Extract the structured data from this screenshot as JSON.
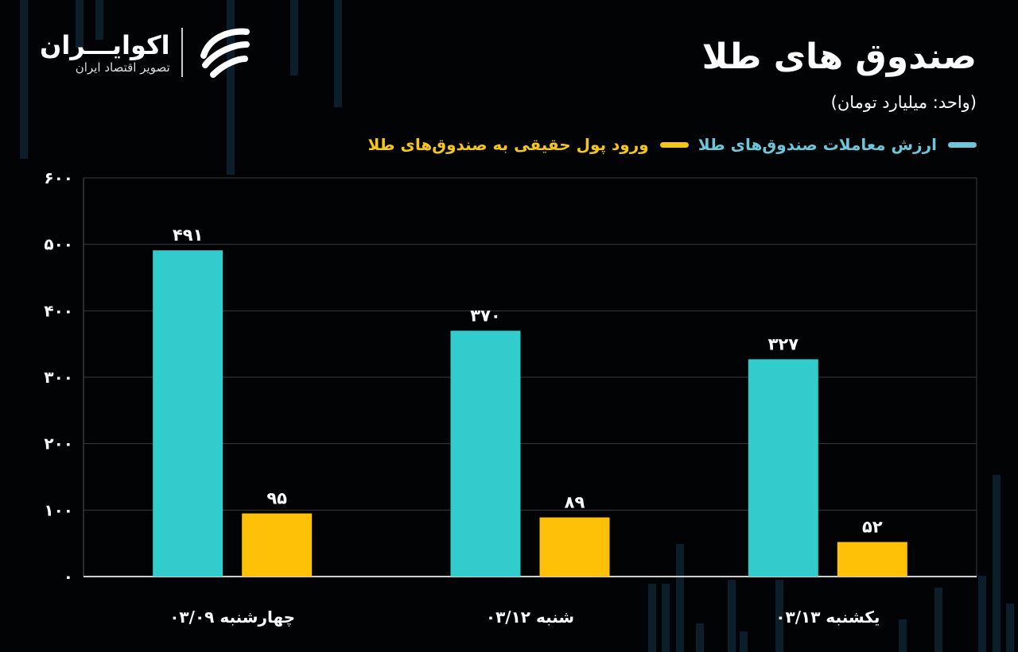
{
  "brand": {
    "name": "اکوایـــران",
    "tagline": "تصویر اقتصاد ایران"
  },
  "colors": {
    "series1": "#33cccc",
    "series2": "#ffc107",
    "legend1_text": "#6cc6d8",
    "legend2_text": "#f5c518",
    "grid": "#3a3a3a"
  },
  "chart_data": {
    "type": "bar",
    "title": "صندوق های طلا",
    "subtitle": "(واحد: میلیارد تومان)",
    "categories": [
      "چهارشنبه ۰۳/۰۹",
      "شنبه ۰۳/۱۲",
      "یکشنبه ۰۳/۱۳"
    ],
    "series": [
      {
        "name": "ارزش معاملات صندوق‌های طلا",
        "values": [
          491,
          370,
          327
        ],
        "labels": [
          "۴۹۱",
          "۳۷۰",
          "۳۲۷"
        ]
      },
      {
        "name": "ورود پول حقیقی به صندوق‌های طلا",
        "values": [
          95,
          89,
          52
        ],
        "labels": [
          "۹۵",
          "۸۹",
          "۵۲"
        ]
      }
    ],
    "yticks": [
      0,
      100,
      200,
      300,
      400,
      500,
      600
    ],
    "ytick_labels": [
      "۰",
      "۱۰۰",
      "۲۰۰",
      "۳۰۰",
      "۴۰۰",
      "۵۰۰",
      "۶۰۰"
    ],
    "ylim": [
      0,
      600
    ],
    "grid": true,
    "legend_position": "top-right"
  }
}
